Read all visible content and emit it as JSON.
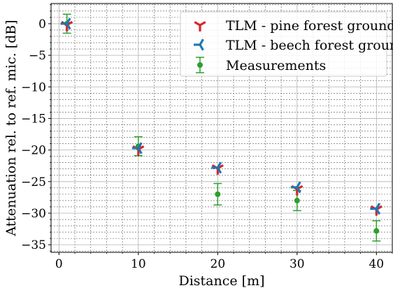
{
  "chart_data": {
    "type": "scatter",
    "xlabel": "Distance [m]",
    "ylabel": "Attenuation rel. to ref. mic. [dB]",
    "xlim": [
      -1,
      42
    ],
    "ylim": [
      -36.2,
      3.2
    ],
    "xticks": [
      0,
      10,
      20,
      30,
      40
    ],
    "xtick_labels": [
      "0",
      "10",
      "20",
      "30",
      "40"
    ],
    "yticks": [
      0,
      -5,
      -10,
      -15,
      -20,
      -25,
      -30,
      -35
    ],
    "ytick_labels": [
      "0",
      "−5",
      "−10",
      "−15",
      "−20",
      "−25",
      "−30",
      "−35"
    ],
    "grid": true,
    "legend_position": "top-right",
    "series": [
      {
        "name": "TLM - pine forest ground",
        "marker": "tri_down",
        "color": "#d62728",
        "x": [
          1,
          10,
          20,
          30,
          40
        ],
        "y": [
          -0.2,
          -19.9,
          -22.9,
          -26.2,
          -29.4
        ]
      },
      {
        "name": "TLM - beech forest ground",
        "marker": "tri_left",
        "color": "#1f77b4",
        "x": [
          1,
          10,
          20,
          30,
          40
        ],
        "y": [
          0.0,
          -19.7,
          -22.8,
          -25.9,
          -29.3
        ]
      },
      {
        "name": "Measurements",
        "marker": "circle_errorbar",
        "color": "#2ca02c",
        "x": [
          1,
          10,
          20,
          30,
          40
        ],
        "y": [
          0.0,
          -19.4,
          -27.0,
          -28.0,
          -32.8
        ],
        "yerr": [
          1.5,
          1.5,
          1.7,
          1.6,
          1.6
        ]
      }
    ]
  }
}
